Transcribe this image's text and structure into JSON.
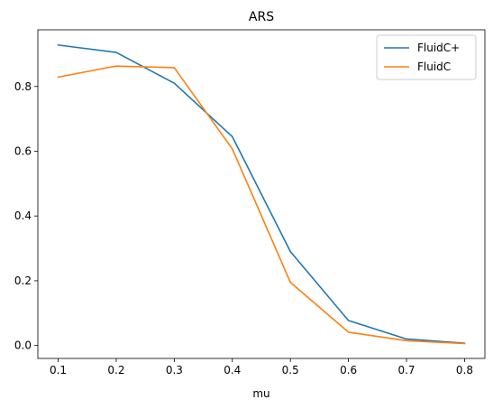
{
  "chart_data": {
    "type": "line",
    "title": "ARS",
    "xlabel": "mu",
    "ylabel": "",
    "x": [
      0.1,
      0.2,
      0.3,
      0.4,
      0.5,
      0.6,
      0.7,
      0.8
    ],
    "xticks": [
      "0.1",
      "0.2",
      "0.3",
      "0.4",
      "0.5",
      "0.6",
      "0.7",
      "0.8"
    ],
    "yticks": [
      "0.0",
      "0.2",
      "0.4",
      "0.6",
      "0.8"
    ],
    "xlim": [
      0.065,
      0.835
    ],
    "ylim": [
      -0.04,
      0.975
    ],
    "grid": false,
    "legend_position": "top-right",
    "series": [
      {
        "name": "FluidC+",
        "color": "#1f77b4",
        "values": [
          0.928,
          0.905,
          0.81,
          0.645,
          0.29,
          0.077,
          0.02,
          0.007
        ]
      },
      {
        "name": "FluidC",
        "color": "#ff7f0e",
        "values": [
          0.829,
          0.863,
          0.858,
          0.607,
          0.195,
          0.041,
          0.015,
          0.006
        ]
      }
    ]
  }
}
